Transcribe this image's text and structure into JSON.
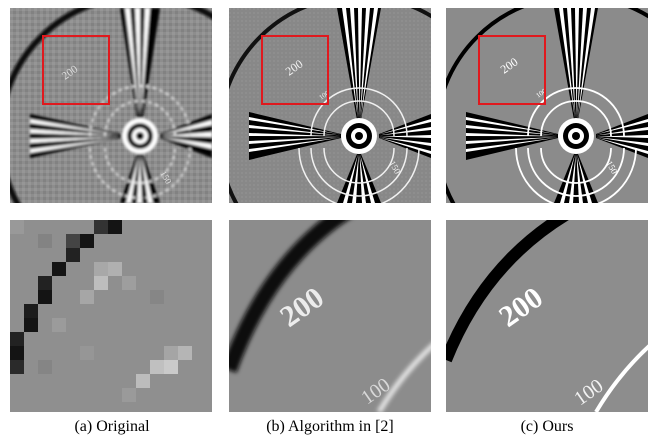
{
  "figure": {
    "captions": [
      "(a) Original",
      "(b) Algorithm in [2]",
      "(c) Ours"
    ],
    "labels": {
      "top_a": "200",
      "top_b": "200",
      "top_c": "200",
      "zoom_b": "200",
      "zoom_c": "200",
      "mid_label": "100",
      "low_label": "150"
    },
    "colors": {
      "background_gray": "#8a8a8a",
      "highlight_box": "#e0191e",
      "stroke_dark": "#000000",
      "stroke_light": "#ffffff"
    }
  }
}
